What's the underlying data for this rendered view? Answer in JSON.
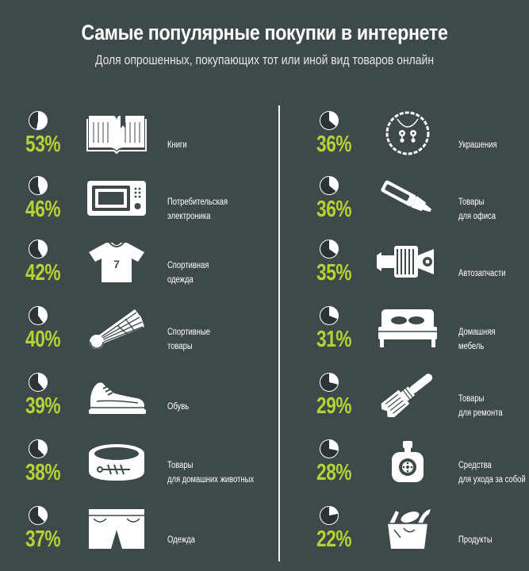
{
  "title": "Самые популярные покупки в интернете",
  "subtitle": "Доля опрошенных, покупающих тот или иной вид товаров онлайн",
  "colors": {
    "background": "#3e4a4a",
    "accent": "#b5d334",
    "pie_fill": "#ffffff",
    "pie_empty": "#2b3434"
  },
  "chart_data": {
    "type": "pie",
    "title": "Самые популярные покупки в интернете",
    "subtitle": "Доля опрошенных, покупающих тот или иной вид товаров онлайн",
    "unit": "%",
    "categories": [
      "Книги",
      "Потребительская электроника",
      "Спортивная одежда",
      "Спортивные товары",
      "Обувь",
      "Товары для домашних животных",
      "Одежда",
      "Украшения",
      "Товары для офиса",
      "Автозапчасти",
      "Домашняя мебель",
      "Товары для ремонта",
      "Средства для ухода за собой",
      "Продукты"
    ],
    "values": [
      53,
      46,
      42,
      40,
      39,
      38,
      37,
      36,
      36,
      35,
      31,
      29,
      28,
      22
    ]
  },
  "items": [
    {
      "pct_text": "53%",
      "label_lines": [
        "Книги"
      ],
      "icon": "book-icon"
    },
    {
      "pct_text": "46%",
      "label_lines": [
        "Потребительская",
        "электроника"
      ],
      "icon": "microwave-icon"
    },
    {
      "pct_text": "42%",
      "label_lines": [
        "Спортивная",
        "одежда"
      ],
      "icon": "jersey-icon"
    },
    {
      "pct_text": "40%",
      "label_lines": [
        "Спортивные",
        "товары"
      ],
      "icon": "shuttlecock-icon"
    },
    {
      "pct_text": "39%",
      "label_lines": [
        "Обувь"
      ],
      "icon": "sneaker-icon"
    },
    {
      "pct_text": "38%",
      "label_lines": [
        "Товары",
        "для домашних животных"
      ],
      "icon": "pet-bowl-icon"
    },
    {
      "pct_text": "37%",
      "label_lines": [
        "Одежда"
      ],
      "icon": "shorts-icon"
    },
    {
      "pct_text": "36%",
      "label_lines": [
        "Украшения"
      ],
      "icon": "necklace-icon"
    },
    {
      "pct_text": "36%",
      "label_lines": [
        "Товары",
        "для офиса"
      ],
      "icon": "highlighter-icon"
    },
    {
      "pct_text": "35%",
      "label_lines": [
        "Автозапчасти"
      ],
      "icon": "engine-icon"
    },
    {
      "pct_text": "31%",
      "label_lines": [
        "Домашняя",
        "мебель"
      ],
      "icon": "bed-icon"
    },
    {
      "pct_text": "29%",
      "label_lines": [
        "Товары",
        "для ремонта"
      ],
      "icon": "paintbrush-icon"
    },
    {
      "pct_text": "28%",
      "label_lines": [
        "Средства",
        "для ухода за собой"
      ],
      "icon": "perfume-icon"
    },
    {
      "pct_text": "22%",
      "label_lines": [
        "Продукты"
      ],
      "icon": "grocery-bag-icon"
    }
  ]
}
